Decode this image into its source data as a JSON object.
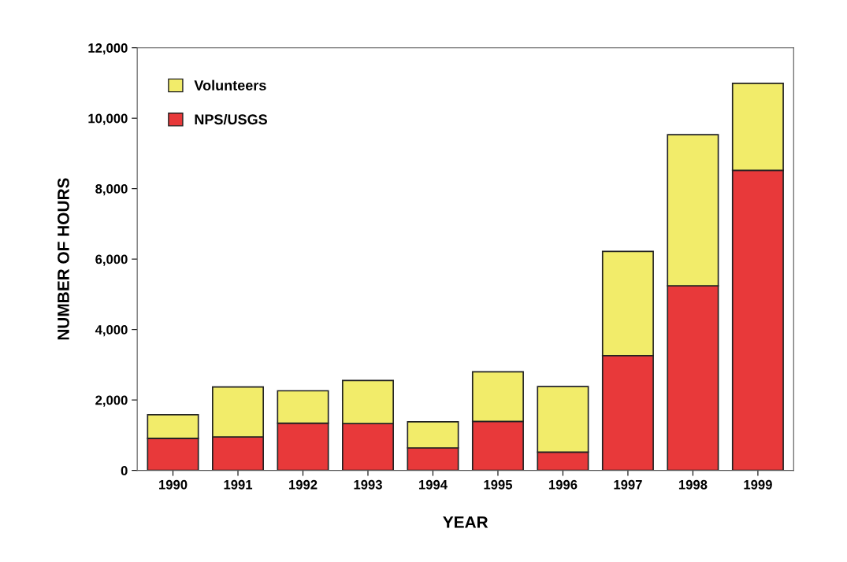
{
  "chart_data": {
    "type": "bar",
    "stacked": true,
    "xlabel": "YEAR",
    "ylabel": "NUMBER OF HOURS",
    "categories": [
      "1990",
      "1991",
      "1992",
      "1993",
      "1994",
      "1995",
      "1996",
      "1997",
      "1998",
      "1999"
    ],
    "series": [
      {
        "name": "NPS/USGS",
        "color": "#e8393a",
        "values": [
          910,
          950,
          1340,
          1330,
          640,
          1390,
          520,
          3260,
          5240,
          8520
        ]
      },
      {
        "name": "Volunteers",
        "color": "#f2ec6a",
        "values": [
          670,
          1420,
          920,
          1225,
          740,
          1410,
          1860,
          2960,
          4290,
          2470
        ]
      }
    ],
    "ylim": [
      0,
      12000
    ],
    "yticks": [
      {
        "value": 0,
        "label": "0"
      },
      {
        "value": 2000,
        "label": "2,000"
      },
      {
        "value": 4000,
        "label": "4,000"
      },
      {
        "value": 6000,
        "label": "6,000"
      },
      {
        "value": 8000,
        "label": "8,000"
      },
      {
        "value": 10000,
        "label": "10,000"
      },
      {
        "value": 12000,
        "label": "12,000"
      }
    ],
    "grid": false,
    "legend": "top left"
  }
}
